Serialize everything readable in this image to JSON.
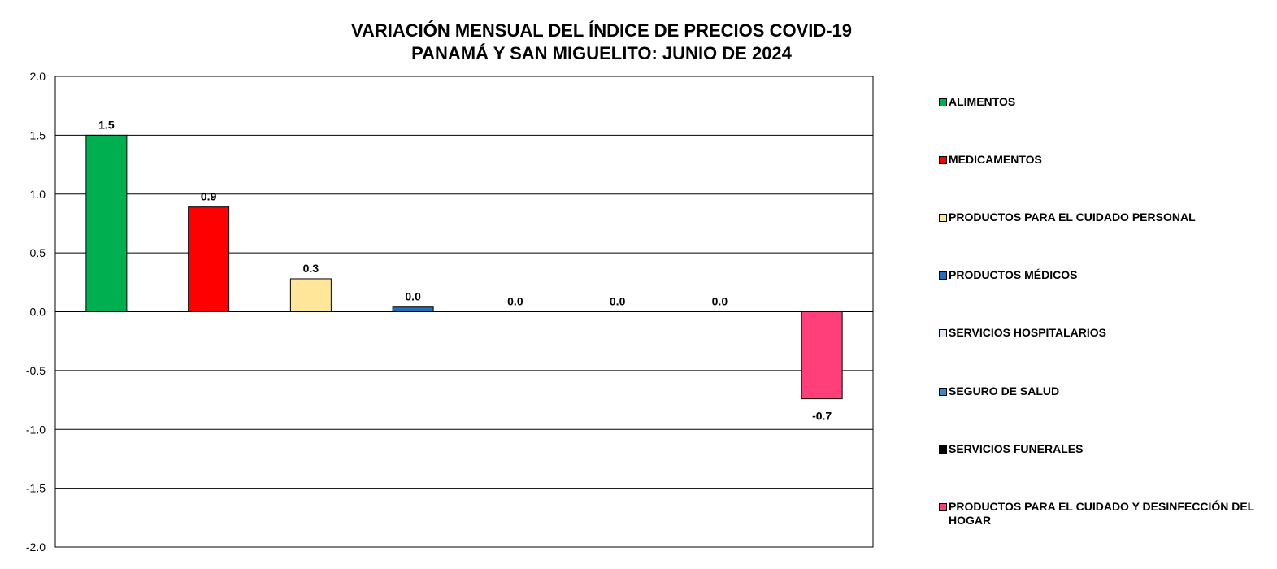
{
  "chart_data": {
    "type": "bar",
    "title_line1": "VARIACIÓN MENSUAL DEL ÍNDICE DE PRECIOS COVID-19",
    "title_line2": "PANAMÁ Y SAN MIGUELITO: JUNIO DE 2024",
    "ylim": [
      -2.0,
      2.0
    ],
    "yticks": [
      "2.0",
      "1.5",
      "1.0",
      "0.5",
      "0.0",
      "-0.5",
      "-1.0",
      "-1.5",
      "-2.0"
    ],
    "grid": true,
    "legend_position": "right",
    "categories": [
      "ALIMENTOS",
      "MEDICAMENTOS",
      "PRODUCTOS PARA EL CUIDADO PERSONAL",
      "PRODUCTOS MÉDICOS",
      "SERVICIOS HOSPITALARIOS",
      "SEGURO DE SALUD",
      "SERVICIOS FUNERALES",
      "PRODUCTOS PARA EL CUIDADO Y DESINFECCIÓN DEL HOGAR"
    ],
    "values": [
      1.5,
      0.89,
      0.28,
      0.04,
      0.0,
      0.0,
      0.0,
      -0.74
    ],
    "data_labels": [
      "1.5",
      "0.9",
      "0.3",
      "0.0",
      "0.0",
      "0.0",
      "0.0",
      "-0.7"
    ],
    "colors": [
      "#00b050",
      "#ff0000",
      "#ffe699",
      "#1f6fbf",
      "#dde6f2",
      "#2e8bd0",
      "#000000",
      "#ff3f7a"
    ]
  }
}
